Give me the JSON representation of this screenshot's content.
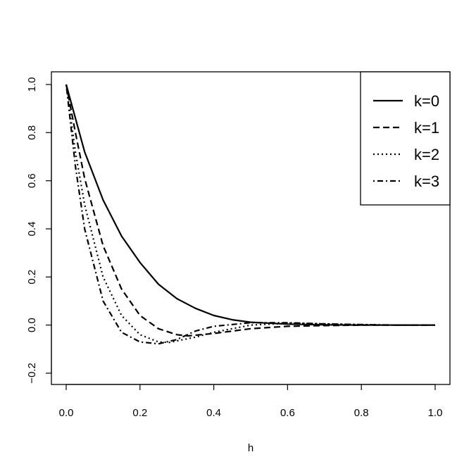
{
  "chart_data": {
    "type": "line",
    "title": "",
    "xlabel": "h",
    "ylabel": "",
    "xlim": [
      0,
      1
    ],
    "ylim": [
      -0.2,
      1
    ],
    "xticks": [
      "0.0",
      "0.2",
      "0.4",
      "0.6",
      "0.8",
      "1.0"
    ],
    "yticks": [
      "-0.2",
      "0.0",
      "0.2",
      "0.4",
      "0.6",
      "0.8",
      "1.0"
    ],
    "legend_position": "top-right",
    "grid": false,
    "series": [
      {
        "name": "k=0",
        "line_style": "solid",
        "x": [
          0,
          0.05,
          0.1,
          0.15,
          0.2,
          0.25,
          0.3,
          0.35,
          0.4,
          0.45,
          0.5,
          0.6,
          0.7,
          0.8,
          0.9,
          1.0
        ],
        "y": [
          1.0,
          0.72,
          0.52,
          0.37,
          0.26,
          0.17,
          0.11,
          0.07,
          0.04,
          0.022,
          0.012,
          0.004,
          0.001,
          0.0,
          0.0,
          0.0
        ]
      },
      {
        "name": "k=1",
        "line_style": "dashed",
        "x": [
          0,
          0.025,
          0.05,
          0.1,
          0.15,
          0.2,
          0.25,
          0.3,
          0.33,
          0.4,
          0.5,
          0.6,
          0.7,
          0.8,
          0.9,
          1.0
        ],
        "y": [
          1.0,
          0.8,
          0.61,
          0.33,
          0.15,
          0.04,
          -0.015,
          -0.04,
          -0.045,
          -0.035,
          -0.015,
          -0.005,
          -0.002,
          0.0,
          0.0,
          0.0
        ]
      },
      {
        "name": "k=2",
        "line_style": "dotted",
        "x": [
          0,
          0.025,
          0.05,
          0.1,
          0.15,
          0.2,
          0.25,
          0.28,
          0.35,
          0.4,
          0.5,
          0.6,
          0.7,
          0.8,
          0.9,
          1.0
        ],
        "y": [
          1.0,
          0.72,
          0.5,
          0.2,
          0.04,
          -0.04,
          -0.07,
          -0.072,
          -0.05,
          -0.03,
          0.0,
          0.008,
          0.005,
          0.002,
          0.0,
          0.0
        ]
      },
      {
        "name": "k=3",
        "line_style": "dotdash",
        "x": [
          0,
          0.025,
          0.05,
          0.1,
          0.15,
          0.2,
          0.25,
          0.3,
          0.35,
          0.4,
          0.5,
          0.6,
          0.7,
          0.8,
          0.9,
          1.0
        ],
        "y": [
          1.0,
          0.66,
          0.4,
          0.1,
          -0.03,
          -0.07,
          -0.078,
          -0.06,
          -0.025,
          -0.005,
          0.01,
          0.01,
          0.005,
          0.002,
          0.0,
          0.0
        ]
      }
    ]
  }
}
